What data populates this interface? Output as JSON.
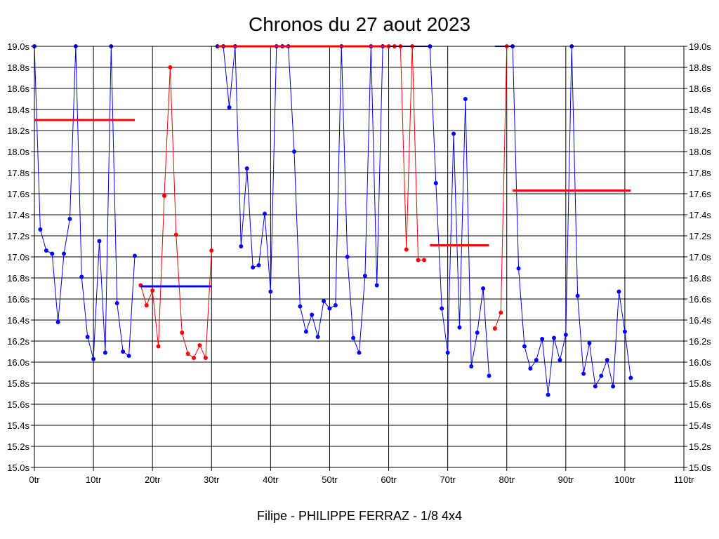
{
  "chart_data": {
    "type": "line",
    "title": "Chronos du 27 aout 2023",
    "subtitle": "Filipe - PHILIPPE FERRAZ - 1/8 4x4",
    "xlim": [
      0,
      110
    ],
    "ylim": [
      15.0,
      19.0
    ],
    "x_ticks": [
      "0tr",
      "10tr",
      "20tr",
      "30tr",
      "40tr",
      "50tr",
      "60tr",
      "70tr",
      "80tr",
      "90tr",
      "100tr",
      "110tr"
    ],
    "y_ticks": [
      "15.0s",
      "15.2s",
      "15.4s",
      "15.6s",
      "15.8s",
      "16.0s",
      "16.2s",
      "16.4s",
      "16.6s",
      "16.8s",
      "17.0s",
      "17.2s",
      "17.4s",
      "17.6s",
      "17.8s",
      "18.0s",
      "18.2s",
      "18.4s",
      "18.6s",
      "18.8s",
      "19.0s"
    ],
    "grid": true,
    "colors": {
      "blue": "#0000ff",
      "red": "#ff0000"
    },
    "series": [
      {
        "color": "blue",
        "x": [
          0,
          1,
          2,
          3,
          4,
          5,
          6,
          7,
          8,
          9,
          10,
          11,
          12,
          13,
          14,
          15,
          16,
          17
        ],
        "y": [
          19.0,
          17.26,
          17.06,
          17.03,
          16.38,
          17.03,
          17.36,
          19.0,
          16.81,
          16.24,
          16.03,
          17.15,
          16.09,
          19.0,
          16.56,
          16.1,
          16.06,
          17.01
        ]
      },
      {
        "color": "red",
        "x": [
          18,
          19,
          20,
          21,
          22,
          23,
          24,
          25,
          26,
          27,
          28,
          29,
          30
        ],
        "y": [
          16.73,
          16.54,
          16.68,
          16.15,
          17.58,
          18.8,
          17.21,
          16.28,
          16.08,
          16.04,
          16.16,
          16.04,
          17.06
        ]
      },
      {
        "color": "blue",
        "x": [
          31,
          32,
          33,
          34,
          35,
          36,
          37,
          38,
          39,
          40,
          41,
          42,
          43,
          44,
          45,
          46,
          47,
          48,
          49,
          50,
          51,
          52,
          53,
          54,
          55,
          56,
          57,
          58,
          59
        ],
        "y": [
          19.0,
          19.0,
          18.42,
          19.0,
          17.1,
          17.84,
          16.9,
          16.92,
          17.41,
          16.67,
          19.0,
          19.0,
          19.0,
          18.0,
          16.53,
          16.29,
          16.45,
          16.24,
          16.58,
          16.51,
          16.54,
          19.0,
          17.0,
          16.23,
          16.09,
          16.82,
          19.0,
          16.73,
          19.0
        ]
      },
      {
        "color": "red",
        "x": [
          60,
          61,
          62,
          63,
          64,
          65,
          66
        ],
        "y": [
          19.0,
          19.0,
          19.0,
          17.07,
          19.0,
          16.97,
          16.97
        ]
      },
      {
        "color": "blue",
        "x": [
          67,
          68,
          69,
          70,
          71,
          72,
          73,
          74,
          75,
          76,
          77
        ],
        "y": [
          19.0,
          17.7,
          16.51,
          16.09,
          18.17,
          16.33,
          18.5,
          15.96,
          16.28,
          16.7,
          15.87
        ]
      },
      {
        "color": "red",
        "x": [
          78,
          79,
          80
        ],
        "y": [
          16.32,
          16.47,
          19.0
        ]
      },
      {
        "color": "blue",
        "x": [
          81,
          82,
          83,
          84,
          85,
          86,
          87,
          88,
          89,
          90,
          91,
          92,
          93,
          94,
          95,
          96,
          97,
          98,
          99,
          100,
          101
        ],
        "y": [
          19.0,
          16.89,
          16.15,
          15.94,
          16.02,
          16.22,
          15.69,
          16.23,
          16.02,
          16.26,
          19.0,
          16.63,
          15.89,
          16.18,
          15.77,
          15.87,
          16.02,
          15.77,
          16.67,
          16.29,
          15.85
        ]
      }
    ],
    "flat_segments": [
      {
        "color": "blue",
        "x": [
          59,
          67
        ],
        "y": 19.0
      },
      {
        "color": "blue",
        "x": [
          78,
          81
        ],
        "y": 19.0
      }
    ],
    "average_lines": [
      {
        "color": "red",
        "x": [
          0,
          17
        ],
        "y": 18.3
      },
      {
        "color": "blue",
        "x": [
          18,
          30
        ],
        "y": 16.72
      },
      {
        "color": "red",
        "x": [
          31,
          60
        ],
        "y": 19.0
      },
      {
        "color": "red",
        "x": [
          67,
          77
        ],
        "y": 17.11
      },
      {
        "color": "red",
        "x": [
          81,
          101
        ],
        "y": 17.63
      }
    ]
  }
}
